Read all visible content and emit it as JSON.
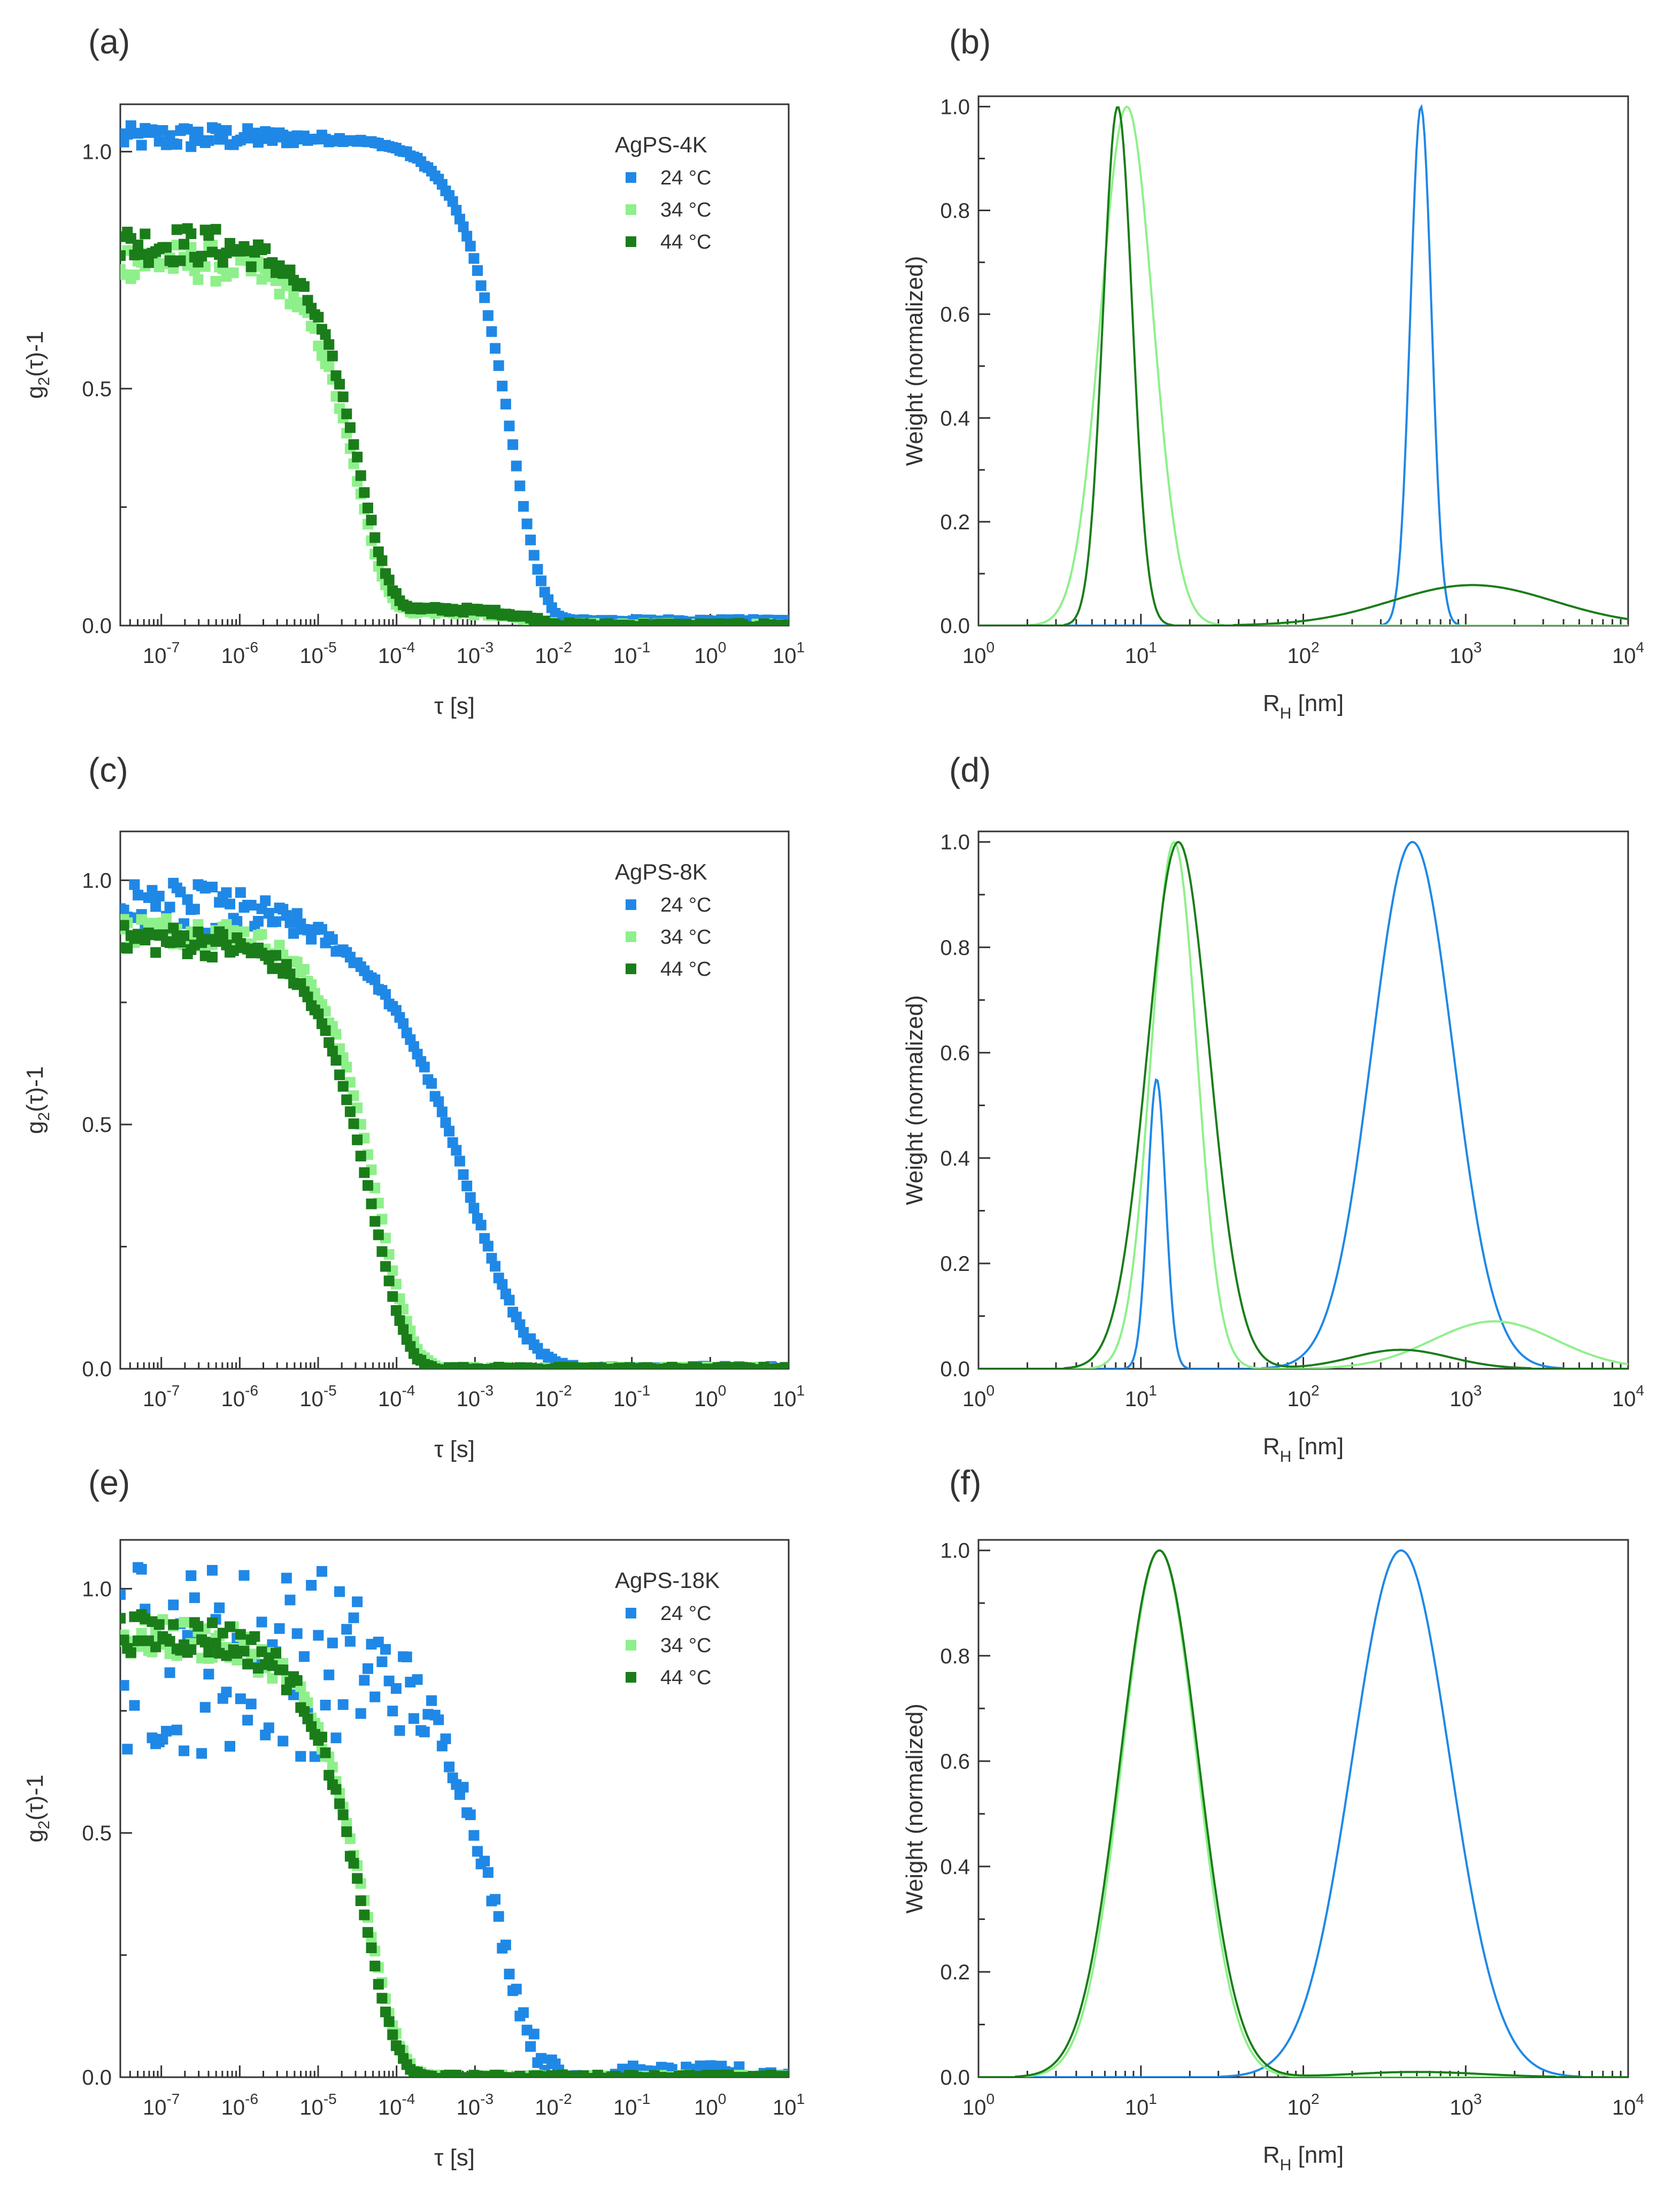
{
  "colors": {
    "t24": "#1f88e6",
    "t34": "#8ef08a",
    "t44": "#1a7d1a",
    "axis": "#333333"
  },
  "panels": [
    {
      "label": "(a)",
      "chart_data": {
        "type": "scatter",
        "xscale": "log",
        "xlim": [
          3e-08,
          10
        ],
        "ylim": [
          0,
          1.1
        ],
        "xlabel": "τ [s]",
        "ylabel": "g2(τ)-1",
        "xticks": [
          {
            "b": "10",
            "e": "-7"
          },
          {
            "b": "10",
            "e": "-6"
          },
          {
            "b": "10",
            "e": "-5"
          },
          {
            "b": "10",
            "e": "-4"
          },
          {
            "b": "10",
            "e": "-3"
          },
          {
            "b": "10",
            "e": "-2"
          },
          {
            "b": "10",
            "e": "-1"
          },
          {
            "b": "10",
            "e": "0"
          },
          {
            "b": "10",
            "e": "1"
          }
        ],
        "yticks": [
          "0.0",
          "0.5",
          "1.0"
        ],
        "legend_title": "AgPS-4K",
        "series": [
          {
            "name": "24 °C",
            "color_key": "t24",
            "kind": "decay",
            "plateau": 1.02,
            "tau": 0.003,
            "beta": 1.1,
            "baseline": 0.01,
            "noise": 0.025,
            "noise_end": 5e-07,
            "slow_amp": 0
          },
          {
            "name": "34 °C",
            "color_key": "t34",
            "kind": "decay",
            "plateau": 0.74,
            "tau": 3.2e-05,
            "beta": 1.15,
            "baseline": 0.0,
            "noise": 0.04,
            "noise_end": 5e-07,
            "slow_amp": 0.03,
            "slow_tau": 0.005
          },
          {
            "name": "44 °C",
            "color_key": "t44",
            "kind": "decay",
            "plateau": 0.77,
            "tau": 3.5e-05,
            "beta": 1.15,
            "baseline": 0.0,
            "noise": 0.04,
            "noise_end": 5e-07,
            "slow_amp": 0.035,
            "slow_tau": 0.006
          }
        ]
      }
    },
    {
      "label": "(b)",
      "chart_data": {
        "type": "line",
        "xscale": "log",
        "xlim": [
          1,
          10000
        ],
        "ylim": [
          0,
          1.02
        ],
        "xlabel": "RH [nm]",
        "ylabel": "Weight (normalized)",
        "xticks": [
          {
            "b": "10",
            "e": "0"
          },
          {
            "b": "10",
            "e": "1"
          },
          {
            "b": "10",
            "e": "2"
          },
          {
            "b": "10",
            "e": "3"
          },
          {
            "b": "10",
            "e": "4"
          }
        ],
        "yticks": [
          "0.0",
          "0.2",
          "0.4",
          "0.6",
          "0.8",
          "1.0"
        ],
        "series": [
          {
            "name": "24 °C",
            "color_key": "t24",
            "peaks": [
              {
                "center": 530,
                "amp": 1.0,
                "width": 0.065
              }
            ]
          },
          {
            "name": "34 °C",
            "color_key": "t34",
            "peaks": [
              {
                "center": 8.2,
                "amp": 1.0,
                "width": 0.16
              }
            ]
          },
          {
            "name": "44 °C",
            "color_key": "t44",
            "peaks": [
              {
                "center": 7.2,
                "amp": 1.0,
                "width": 0.09
              },
              {
                "center": 1100,
                "amp": 0.078,
                "width": 0.5
              }
            ]
          }
        ]
      }
    },
    {
      "label": "(c)",
      "chart_data": {
        "type": "scatter",
        "xscale": "log",
        "xlim": [
          3e-08,
          10
        ],
        "ylim": [
          0,
          1.1
        ],
        "xlabel": "τ [s]",
        "ylabel": "g2(τ)-1",
        "xticks": [
          {
            "b": "10",
            "e": "-7"
          },
          {
            "b": "10",
            "e": "-6"
          },
          {
            "b": "10",
            "e": "-5"
          },
          {
            "b": "10",
            "e": "-4"
          },
          {
            "b": "10",
            "e": "-3"
          },
          {
            "b": "10",
            "e": "-2"
          },
          {
            "b": "10",
            "e": "-1"
          },
          {
            "b": "10",
            "e": "0"
          },
          {
            "b": "10",
            "e": "1"
          }
        ],
        "yticks": [
          "0.0",
          "0.5",
          "1.0"
        ],
        "legend_title": "AgPS-8K",
        "series": [
          {
            "name": "24 °C",
            "color_key": "t24",
            "kind": "decay",
            "plateau": 0.95,
            "tau": 0.0009,
            "beta": 0.6,
            "baseline": 0.0,
            "noise": 0.05,
            "noise_end": 6e-07,
            "slow_amp": 0
          },
          {
            "name": "34 °C",
            "color_key": "t34",
            "kind": "decay",
            "plateau": 0.9,
            "tau": 6e-05,
            "beta": 1.0,
            "baseline": 0.0,
            "noise": 0.03,
            "noise_end": 5e-07,
            "slow_amp": 0
          },
          {
            "name": "44 °C",
            "color_key": "t44",
            "kind": "decay",
            "plateau": 0.88,
            "tau": 5e-05,
            "beta": 1.0,
            "baseline": 0.0,
            "noise": 0.03,
            "noise_end": 5e-07,
            "slow_amp": 0
          }
        ]
      }
    },
    {
      "label": "(d)",
      "chart_data": {
        "type": "line",
        "xscale": "log",
        "xlim": [
          1,
          10000
        ],
        "ylim": [
          0,
          1.02
        ],
        "xlabel": "RH [nm]",
        "ylabel": "Weight (normalized)",
        "xticks": [
          {
            "b": "10",
            "e": "0"
          },
          {
            "b": "10",
            "e": "1"
          },
          {
            "b": "10",
            "e": "2"
          },
          {
            "b": "10",
            "e": "3"
          },
          {
            "b": "10",
            "e": "4"
          }
        ],
        "yticks": [
          "0.0",
          "0.2",
          "0.4",
          "0.6",
          "0.8",
          "1.0"
        ],
        "series": [
          {
            "name": "24 °C",
            "color_key": "t24",
            "peaks": [
              {
                "center": 12.5,
                "amp": 0.55,
                "width": 0.055
              },
              {
                "center": 470,
                "amp": 1.0,
                "width": 0.25
              }
            ]
          },
          {
            "name": "34 °C",
            "color_key": "t34",
            "peaks": [
              {
                "center": 16,
                "amp": 1.0,
                "width": 0.14
              },
              {
                "center": 1500,
                "amp": 0.09,
                "width": 0.38
              }
            ]
          },
          {
            "name": "44 °C",
            "color_key": "t44",
            "peaks": [
              {
                "center": 17,
                "amp": 1.0,
                "width": 0.19
              },
              {
                "center": 400,
                "amp": 0.036,
                "width": 0.3
              }
            ]
          }
        ]
      }
    },
    {
      "label": "(e)",
      "chart_data": {
        "type": "scatter",
        "xscale": "log",
        "xlim": [
          3e-08,
          10
        ],
        "ylim": [
          0,
          1.1
        ],
        "xlabel": "τ [s]",
        "ylabel": "g2(τ)-1",
        "xticks": [
          {
            "b": "10",
            "e": "-7"
          },
          {
            "b": "10",
            "e": "-6"
          },
          {
            "b": "10",
            "e": "-5"
          },
          {
            "b": "10",
            "e": "-4"
          },
          {
            "b": "10",
            "e": "-3"
          },
          {
            "b": "10",
            "e": "-2"
          },
          {
            "b": "10",
            "e": "-1"
          },
          {
            "b": "10",
            "e": "0"
          },
          {
            "b": "10",
            "e": "1"
          }
        ],
        "yticks": [
          "0.0",
          "0.5",
          "1.0"
        ],
        "legend_title": "AgPS-18K",
        "series": [
          {
            "name": "24 °C",
            "color_key": "t24",
            "kind": "decay",
            "plateau": 0.86,
            "tau": 0.002,
            "beta": 0.9,
            "baseline": 0.0,
            "noise": 0.2,
            "noise_end": 1e-05,
            "slow_amp": 0
          },
          {
            "name": "34 °C",
            "color_key": "t34",
            "kind": "decay",
            "plateau": 0.9,
            "tau": 4.2e-05,
            "beta": 1.0,
            "baseline": 0.0,
            "noise": 0.04,
            "noise_end": 1e-06,
            "slow_amp": 0
          },
          {
            "name": "44 °C",
            "color_key": "t44",
            "kind": "decay",
            "plateau": 0.91,
            "tau": 3.8e-05,
            "beta": 1.0,
            "baseline": 0.0,
            "noise": 0.04,
            "noise_end": 1e-06,
            "slow_amp": 0
          }
        ]
      }
    },
    {
      "label": "(f)",
      "chart_data": {
        "type": "line",
        "xscale": "log",
        "xlim": [
          1,
          10000
        ],
        "ylim": [
          0,
          1.02
        ],
        "xlabel": "RH [nm]",
        "ylabel": "Weight (normalized)",
        "xticks": [
          {
            "b": "10",
            "e": "0"
          },
          {
            "b": "10",
            "e": "1"
          },
          {
            "b": "10",
            "e": "2"
          },
          {
            "b": "10",
            "e": "3"
          },
          {
            "b": "10",
            "e": "4"
          }
        ],
        "yticks": [
          "0.0",
          "0.2",
          "0.4",
          "0.6",
          "0.8",
          "1.0"
        ],
        "series": [
          {
            "name": "24 °C",
            "color_key": "t24",
            "peaks": [
              {
                "center": 400,
                "amp": 1.0,
                "width": 0.3
              }
            ]
          },
          {
            "name": "34 °C",
            "color_key": "t34",
            "peaks": [
              {
                "center": 13,
                "amp": 1.0,
                "width": 0.23
              }
            ]
          },
          {
            "name": "44 °C",
            "color_key": "t44",
            "peaks": [
              {
                "center": 13,
                "amp": 1.0,
                "width": 0.24
              },
              {
                "center": 500,
                "amp": 0.01,
                "width": 0.4
              }
            ]
          }
        ]
      }
    }
  ]
}
